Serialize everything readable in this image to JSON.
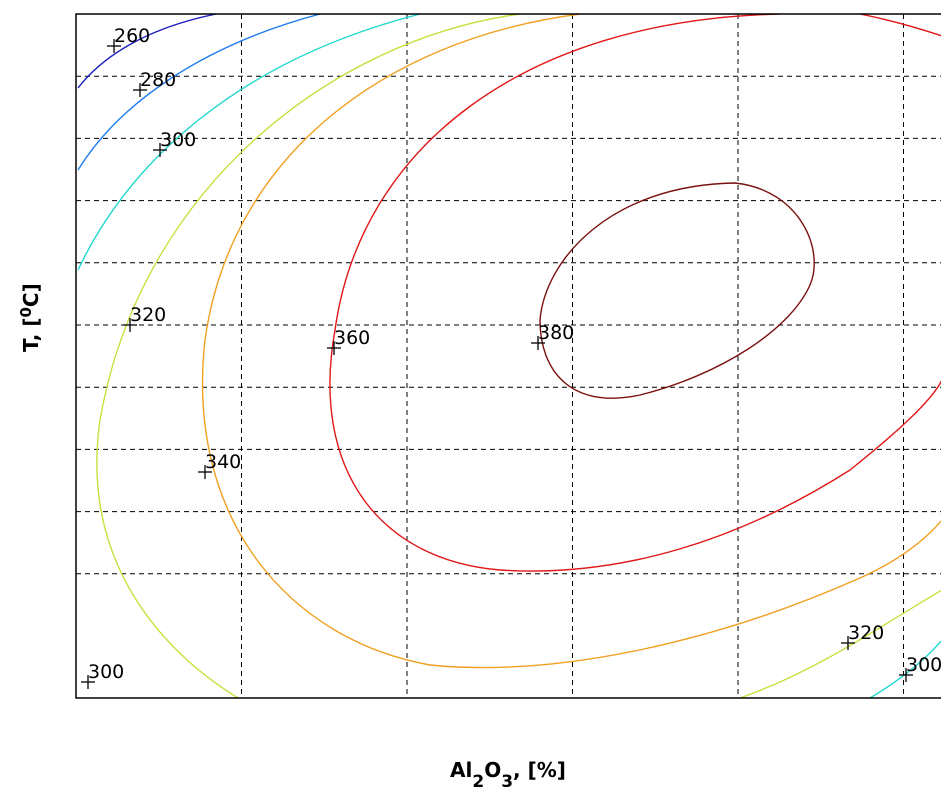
{
  "chart_data": {
    "type": "contour",
    "xlabel": {
      "base": "Al",
      "sub1": "2",
      "mid": "O",
      "sub2": "3",
      "suffix": ", [%]"
    },
    "ylabel": {
      "base": "T, [",
      "sup": "0",
      "suffix": "C]"
    },
    "grid": true,
    "grid_style": "dashed",
    "x_gridlines": 5,
    "y_gridlines": 10,
    "levels": [
      {
        "level": "260",
        "color": "#2020c0"
      },
      {
        "level": "280",
        "color": "#1e7cf0"
      },
      {
        "level": "300",
        "color": "#20d8d0"
      },
      {
        "level": "320",
        "color": "#c8e040"
      },
      {
        "level": "340",
        "color": "#f0a020"
      },
      {
        "level": "360",
        "color": "#e01818"
      },
      {
        "level": "380",
        "color": "#7a1010"
      }
    ],
    "contour_labels": [
      {
        "text": "260",
        "level": "260"
      },
      {
        "text": "280",
        "level": "280"
      },
      {
        "text": "300",
        "level": "300"
      },
      {
        "text": "320",
        "level": "320"
      },
      {
        "text": "340",
        "level": "340"
      },
      {
        "text": "360",
        "level": "360"
      },
      {
        "text": "380",
        "level": "380"
      },
      {
        "text": "300",
        "level": "300"
      },
      {
        "text": "320",
        "level": "320"
      },
      {
        "text": "300",
        "level": "300"
      }
    ]
  }
}
